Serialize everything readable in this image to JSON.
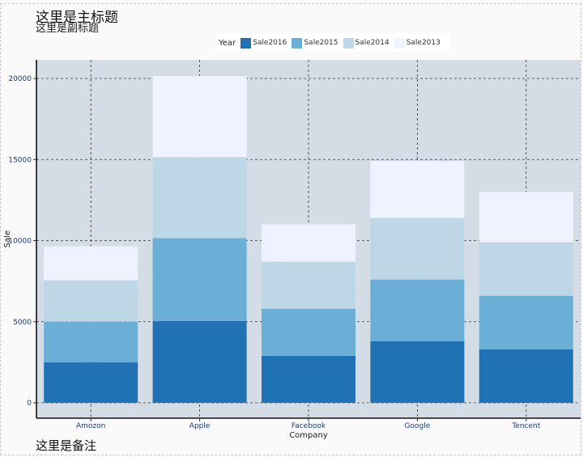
{
  "title": "这里是主标题",
  "subtitle": "这里是副标题",
  "note": "这里是备注",
  "colors": {
    "panel_bg": "#d4dde5",
    "grid": "#333333",
    "tick_label": "#1a3a6e",
    "Sale2016": "#2171b5",
    "Sale2015": "#6baed6",
    "Sale2014": "#bdd7e7",
    "Sale2013": "#eff3ff"
  },
  "chart_data": {
    "type": "bar",
    "stacked": true,
    "title": "这里是主标题",
    "subtitle": "这里是副标题",
    "xlabel": "Company",
    "ylabel": "Sale",
    "legend_title": "Year",
    "legend_position": "top",
    "grid": true,
    "ylim": [
      0,
      21000
    ],
    "yticks": [
      0,
      5000,
      10000,
      15000,
      20000
    ],
    "categories": [
      "Amozon",
      "Apple",
      "Facebook",
      "Google",
      "Tencent"
    ],
    "series": [
      {
        "name": "Sale2016",
        "values": [
          2500,
          5050,
          2900,
          3800,
          3300
        ]
      },
      {
        "name": "Sale2015",
        "values": [
          2500,
          5100,
          2900,
          3800,
          3300
        ]
      },
      {
        "name": "Sale2014",
        "values": [
          2550,
          5000,
          2900,
          3800,
          3300
        ]
      },
      {
        "name": "Sale2013",
        "values": [
          2100,
          5000,
          2300,
          3500,
          3100
        ]
      }
    ]
  }
}
